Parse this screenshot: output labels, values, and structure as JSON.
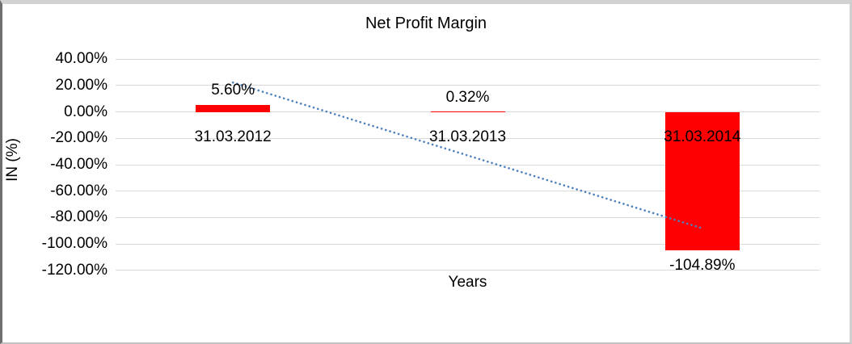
{
  "chart_data": {
    "type": "bar",
    "title": "Net Profit Margin",
    "xlabel": "Years",
    "ylabel": "IN (%)",
    "categories": [
      "31.03.2012",
      "31.03.2013",
      "31.03.2014"
    ],
    "series": [
      {
        "name": "Net Profit Margin",
        "values": [
          5.6,
          0.32,
          -104.89
        ]
      }
    ],
    "data_labels": [
      "5.60%",
      "0.32%",
      "-104.89%"
    ],
    "y_ticks": [
      {
        "label": "40.00%",
        "value": 40
      },
      {
        "label": "20.00%",
        "value": 20
      },
      {
        "label": "0.00%",
        "value": 0
      },
      {
        "label": "-20.00%",
        "value": -20
      },
      {
        "label": "-40.00%",
        "value": -40
      },
      {
        "label": "-60.00%",
        "value": -60
      },
      {
        "label": "-80.00%",
        "value": -80
      },
      {
        "label": "-100.00%",
        "value": -100
      },
      {
        "label": "-120.00%",
        "value": -120
      }
    ],
    "ylim": [
      -120,
      40
    ],
    "grid": true,
    "legend": false,
    "bar_color": "#FF0000",
    "gridline_color": "#D9D9D9",
    "text_color": "#000000",
    "trendline": {
      "type": "linear",
      "style": "dotted",
      "color": "#4F81BD",
      "start_value": 22.3,
      "end_value": -88.2
    }
  }
}
